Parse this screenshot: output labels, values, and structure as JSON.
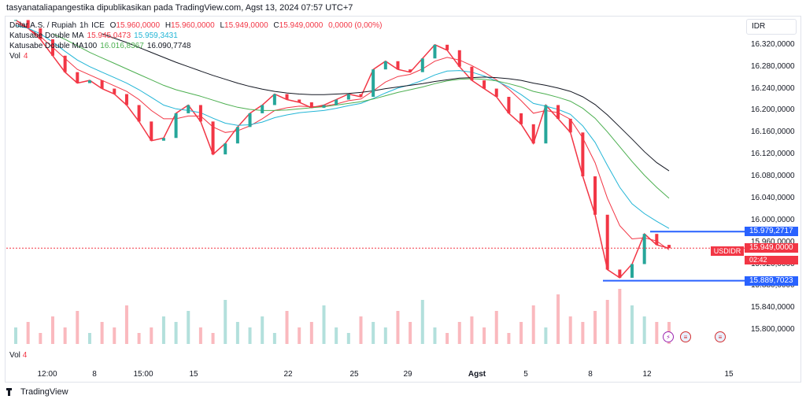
{
  "header": "tasyanataliapangestika dipublikasikan pada TradingView.com, Agst 13, 2024 07:57 UTC+7",
  "legend": {
    "symbol_line": {
      "name": "Dolar A.S. / Rupiah",
      "interval": "1h",
      "exchange": "ICE",
      "o_label": "O",
      "o": "15.960,0000",
      "h_label": "H",
      "h": "15.960,0000",
      "l_label": "L",
      "l": "15.949,0000",
      "c_label": "C",
      "c": "15.949,0000",
      "chg": "0,0000 (0,00%)"
    },
    "ma1": {
      "name": "Katusabe Double MA",
      "v1": "15.945,0473",
      "v2": "15.959,3431"
    },
    "ma2": {
      "name": "Katusabe Double MA100",
      "v1": "16.016,8367",
      "v2": "16.090,7748"
    },
    "vol": {
      "label": "Vol",
      "value": "4"
    }
  },
  "currency": "IDR",
  "symbol_tag": "USDIDR",
  "countdown": "02:42",
  "brand": "TradingView",
  "price_tags": {
    "upper": "15.979,2717",
    "current": "15.949,0000",
    "lower": "15.889,7023"
  },
  "colors": {
    "up": "#26a69a",
    "down": "#f23645",
    "ma_fast": "#f23645",
    "ma_slow": "#22b5d6",
    "ma100_a": "#4caf50",
    "ma100_b": "#131722",
    "level": "#2962ff"
  },
  "chart_data": {
    "type": "line",
    "title": "",
    "y_axis_labels": [
      "16.320,0000",
      "16.280,0000",
      "16.240,0000",
      "16.200,0000",
      "16.160,0000",
      "16.120,0000",
      "16.080,0000",
      "16.040,0000",
      "16.000,0000",
      "15.960,0000",
      "15.920,0000",
      "15.880,0000",
      "15.840,0000",
      "15.800,0000"
    ],
    "x_axis_labels": [
      "12:00",
      "8",
      "15:00",
      "15",
      "22",
      "25",
      "29",
      "Agst",
      "5",
      "8",
      "12",
      "15"
    ],
    "ylim": [
      15770,
      16370
    ],
    "series": [
      {
        "name": "Dolar A.S. / Rupiah",
        "values": [
          16365,
          16350,
          16330,
          16300,
          16270,
          16250,
          16255,
          16240,
          16230,
          16210,
          16180,
          16145,
          16150,
          16195,
          16210,
          16180,
          16120,
          16140,
          16170,
          16195,
          16210,
          16230,
          16220,
          16215,
          16205,
          16210,
          16220,
          16230,
          16225,
          16275,
          16290,
          16275,
          16270,
          16295,
          16320,
          16310,
          16280,
          16255,
          16240,
          16225,
          16195,
          16175,
          16140,
          16210,
          16185,
          16160,
          16080,
          16010,
          15910,
          15895,
          15920,
          15975,
          15955,
          15949
        ]
      },
      {
        "name": "Katusabe Double MA",
        "values": [
          16360,
          16350,
          16335,
          16315,
          16295,
          16275,
          16265,
          16255,
          16245,
          16235,
          16220,
          16200,
          16185,
          16185,
          16190,
          16190,
          16170,
          16160,
          16163,
          16172,
          16185,
          16200,
          16205,
          16208,
          16207,
          16208,
          16212,
          16218,
          16221,
          16236,
          16252,
          16262,
          16266,
          16276,
          16290,
          16297,
          16292,
          16282,
          16270,
          16256,
          16239,
          16218,
          16195,
          16200,
          16196,
          16184,
          16150,
          16105,
          16040,
          15990,
          15966,
          15968,
          15962,
          15946
        ]
      },
      {
        "name": "",
        "values": [
          16355,
          16350,
          16340,
          16325,
          16308,
          16292,
          16280,
          16270,
          16260,
          16250,
          16238,
          16224,
          16210,
          16203,
          16200,
          16196,
          16186,
          16177,
          16173,
          16174,
          16179,
          16187,
          16192,
          16196,
          16198,
          16200,
          16204,
          16209,
          16213,
          16222,
          16232,
          16241,
          16247,
          16255,
          16265,
          16272,
          16273,
          16270,
          16263,
          16254,
          16243,
          16229,
          16213,
          16208,
          16202,
          16193,
          16172,
          16142,
          16100,
          16060,
          16030,
          16012,
          15998,
          15985
        ]
      },
      {
        "name": "",
        "values": [
          null,
          null,
          null,
          16340,
          16330,
          16318,
          16306,
          16296,
          16286,
          16276,
          16266,
          16256,
          16246,
          16238,
          16232,
          16226,
          16219,
          16212,
          16206,
          16202,
          16200,
          16200,
          16201,
          16203,
          16205,
          16207,
          16210,
          16213,
          16216,
          16221,
          16227,
          16233,
          16238,
          16243,
          16249,
          16254,
          16257,
          16258,
          16257,
          16254,
          16249,
          16243,
          16235,
          16230,
          16224,
          16217,
          16204,
          16186,
          16161,
          16134,
          16107,
          16082,
          16060,
          16040
        ]
      },
      {
        "name": "",
        "values": [
          null,
          null,
          null,
          null,
          null,
          null,
          null,
          16340,
          16332,
          16324,
          16315,
          16306,
          16297,
          16288,
          16280,
          16272,
          16264,
          16257,
          16250,
          16244,
          16239,
          16235,
          16232,
          16230,
          16229,
          16229,
          16230,
          16231,
          16233,
          16236,
          16240,
          16243,
          16246,
          16249,
          16253,
          16256,
          16259,
          16260,
          16261,
          16260,
          16258,
          16255,
          16250,
          16246,
          16241,
          16235,
          16225,
          16211,
          16192,
          16170,
          16148,
          16125,
          16105,
          16090
        ]
      }
    ],
    "levels": [
      15979.2717,
      15949,
      15889.7023
    ],
    "volume": [
      3,
      4,
      2,
      5,
      3,
      6,
      2,
      4,
      3,
      7,
      2,
      3,
      5,
      4,
      6,
      3,
      2,
      8,
      4,
      3,
      5,
      2,
      6,
      3,
      4,
      7,
      3,
      2,
      5,
      4,
      3,
      6,
      4,
      8,
      3,
      2,
      4,
      5,
      3,
      6,
      2,
      4,
      7,
      3,
      9,
      5,
      4,
      6,
      8,
      10,
      7,
      5,
      4,
      4
    ]
  }
}
